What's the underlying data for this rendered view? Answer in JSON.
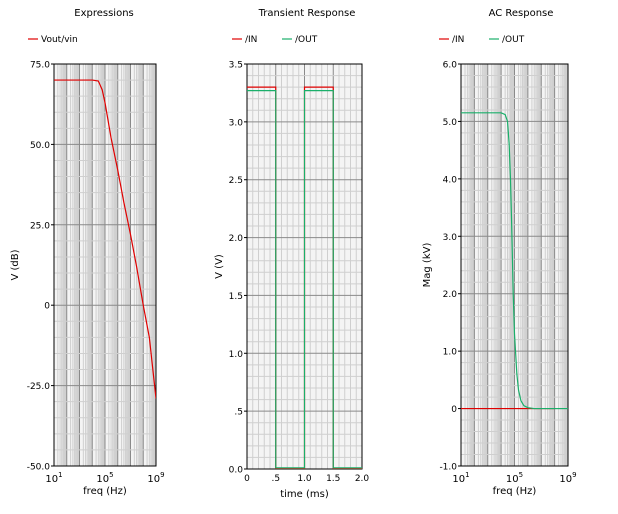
{
  "chart_data": [
    {
      "type": "line",
      "title": "Expressions",
      "xlabel": "freq (Hz)",
      "ylabel": "V (dB)",
      "xscale": "log",
      "xlim": [
        10,
        1000000000
      ],
      "ylim": [
        -50,
        75
      ],
      "yticks": [
        "75.0",
        "50.0",
        "25.0",
        "0",
        "-25.0",
        "-50.0"
      ],
      "ytick_values": [
        75,
        50,
        25,
        0,
        -25,
        -50
      ],
      "xticks": [
        {
          "value": 10,
          "base": "10",
          "exp": "1"
        },
        {
          "value": 100000,
          "base": "10",
          "exp": "5"
        },
        {
          "value": 1000000000,
          "base": "10",
          "exp": "9"
        }
      ],
      "legend_placement": "top-left",
      "grid": true,
      "series": [
        {
          "name": "Vout/vin",
          "color": "#e00000",
          "x": [
            10,
            100,
            1000,
            10000,
            30000,
            60000,
            100000,
            300000,
            1000000,
            3000000,
            10000000,
            30000000,
            100000000,
            300000000,
            1000000000
          ],
          "y": [
            70,
            70,
            70,
            70,
            69.7,
            67,
            63,
            52,
            42,
            32,
            22,
            12,
            0,
            -10,
            -29
          ]
        }
      ]
    },
    {
      "type": "line",
      "title": "Transient Response",
      "xlabel": "time (ms)",
      "ylabel": "V (V)",
      "xlim": [
        0,
        2.0
      ],
      "ylim": [
        0,
        3.5
      ],
      "yticks": [
        "3.5",
        "3.0",
        "2.5",
        "2.0",
        "1.5",
        "1.0",
        ".5",
        "0.0"
      ],
      "ytick_values": [
        3.5,
        3.0,
        2.5,
        2.0,
        1.5,
        1.0,
        0.5,
        0.0
      ],
      "xticks": [
        "0",
        ".5",
        "1.0",
        "1.5",
        "2.0"
      ],
      "xtick_values": [
        0,
        0.5,
        1.0,
        1.5,
        2.0
      ],
      "legend_placement": "top-center",
      "grid": true,
      "series": [
        {
          "name": "/IN",
          "color": "#e00000",
          "x": [
            0,
            0.5,
            0.5,
            1.0,
            1.0,
            1.5,
            1.5,
            2.0
          ],
          "y": [
            3.3,
            3.3,
            0,
            0,
            3.3,
            3.3,
            0,
            0
          ]
        },
        {
          "name": "/OUT",
          "color": "#1aaf6a",
          "x": [
            0,
            0.5,
            0.5,
            1.0,
            1.0,
            1.5,
            1.5,
            2.0
          ],
          "y": [
            3.27,
            3.27,
            0.01,
            0.01,
            3.27,
            3.27,
            0.01,
            0.01
          ]
        }
      ]
    },
    {
      "type": "line",
      "title": "AC Response",
      "xlabel": "freq (Hz)",
      "ylabel": "Mag (kV)",
      "xscale": "log",
      "xlim": [
        10,
        1000000000
      ],
      "ylim": [
        -1.0,
        6.0
      ],
      "yticks": [
        "6.0",
        "5.0",
        "4.0",
        "3.0",
        "2.0",
        "1.0",
        "0",
        "-1.0"
      ],
      "ytick_values": [
        6,
        5,
        4,
        3,
        2,
        1,
        0,
        -1
      ],
      "xticks": [
        {
          "value": 10,
          "base": "10",
          "exp": "1"
        },
        {
          "value": 100000,
          "base": "10",
          "exp": "5"
        },
        {
          "value": 1000000000,
          "base": "10",
          "exp": "9"
        }
      ],
      "legend_placement": "top-center",
      "grid": true,
      "series": [
        {
          "name": "/IN",
          "color": "#e00000",
          "x": [
            10,
            100000000
          ],
          "y": [
            0,
            0
          ]
        },
        {
          "name": "/OUT",
          "color": "#1aaf6a",
          "x": [
            10,
            1000,
            10000,
            20000,
            30000,
            40000,
            50000,
            60000,
            70000,
            80000,
            100000,
            150000,
            200000,
            300000,
            500000,
            1000000,
            3000000,
            10000000,
            100000000,
            1000000000
          ],
          "y": [
            5.15,
            5.15,
            5.15,
            5.12,
            5.0,
            4.6,
            4.0,
            3.3,
            2.6,
            2.0,
            1.3,
            0.6,
            0.32,
            0.14,
            0.05,
            0.015,
            0,
            0,
            0,
            0
          ]
        }
      ]
    }
  ]
}
